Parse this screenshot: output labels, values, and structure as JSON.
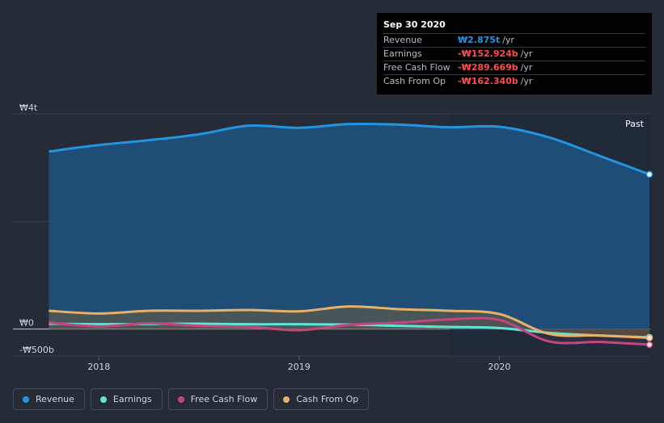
{
  "chart_data": {
    "type": "area",
    "title": "",
    "x_range": [
      2017.7,
      2020.75
    ],
    "ylim": [
      -500,
      4000
    ],
    "y_tick_labels": [
      {
        "value": 4000,
        "label": "₩4t"
      },
      {
        "value": 0,
        "label": "₩0"
      },
      {
        "value": -500,
        "label": "-₩500b"
      }
    ],
    "x_ticks": [
      {
        "value": 2018,
        "label": "2018"
      },
      {
        "value": 2019,
        "label": "2019"
      },
      {
        "value": 2020,
        "label": "2020"
      }
    ],
    "past_start": 2019.75,
    "past_label": "Past",
    "series": [
      {
        "name": "Revenue",
        "color": "#2394df",
        "x": [
          2017.75,
          2018.0,
          2018.25,
          2018.5,
          2018.75,
          2019.0,
          2019.25,
          2019.5,
          2019.75,
          2020.0,
          2020.25,
          2020.5,
          2020.75
        ],
        "values": [
          3300,
          3420,
          3510,
          3620,
          3780,
          3740,
          3810,
          3800,
          3750,
          3760,
          3560,
          3220,
          2875
        ]
      },
      {
        "name": "Earnings",
        "color": "#5ee5d3",
        "x": [
          2017.75,
          2018.0,
          2018.25,
          2018.5,
          2018.75,
          2019.0,
          2019.25,
          2019.5,
          2019.75,
          2020.0,
          2020.25,
          2020.5,
          2020.75
        ],
        "values": [
          100,
          90,
          95,
          100,
          90,
          90,
          85,
          60,
          40,
          20,
          -70,
          -120,
          -152.924
        ]
      },
      {
        "name": "Free Cash Flow",
        "color": "#c5467e",
        "x": [
          2017.75,
          2018.0,
          2018.25,
          2018.5,
          2018.75,
          2019.0,
          2019.25,
          2019.5,
          2019.75,
          2020.0,
          2020.25,
          2020.5,
          2020.75
        ],
        "values": [
          120,
          50,
          110,
          60,
          40,
          -20,
          80,
          120,
          180,
          170,
          -230,
          -240,
          -289.669
        ]
      },
      {
        "name": "Cash From Op",
        "color": "#e7b168",
        "x": [
          2017.75,
          2018.0,
          2018.25,
          2018.5,
          2018.75,
          2019.0,
          2019.25,
          2019.5,
          2019.75,
          2020.0,
          2020.25,
          2020.5,
          2020.75
        ],
        "values": [
          340,
          290,
          340,
          340,
          355,
          330,
          420,
          370,
          340,
          280,
          -90,
          -120,
          -162.34
        ]
      }
    ]
  },
  "tooltip": {
    "date": "Sep 30 2020",
    "rows": [
      {
        "label": "Revenue",
        "value": "₩2.875t",
        "unit": "/yr",
        "color": "#2394df"
      },
      {
        "label": "Earnings",
        "value": "-₩152.924b",
        "unit": "/yr",
        "color": "#ff4d4d"
      },
      {
        "label": "Free Cash Flow",
        "value": "-₩289.669b",
        "unit": "/yr",
        "color": "#ff4d4d"
      },
      {
        "label": "Cash From Op",
        "value": "-₩162.340b",
        "unit": "/yr",
        "color": "#ff4d4d"
      }
    ]
  },
  "legend": [
    {
      "label": "Revenue",
      "color": "#2394df"
    },
    {
      "label": "Earnings",
      "color": "#5ee5d3"
    },
    {
      "label": "Free Cash Flow",
      "color": "#c5467e"
    },
    {
      "label": "Cash From Op",
      "color": "#e7b168"
    }
  ]
}
